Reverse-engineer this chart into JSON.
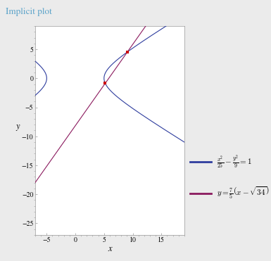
{
  "title": "Implicit plot",
  "title_color": "#5ba3c9",
  "background_color": "#ebebeb",
  "plot_background": "#ffffff",
  "xlim": [
    -7,
    19
  ],
  "ylim": [
    -27,
    9
  ],
  "xlabel": "x",
  "ylabel": "y",
  "hyperbola_a2": 25,
  "hyperbola_b2": 9,
  "hyperbola_color": "#2e3d9e",
  "line_slope_num": 7,
  "line_slope_den": 5,
  "line_color": "#8b1a5e",
  "intersection_color": "#cc0000",
  "xticks": [
    -5,
    0,
    5,
    10,
    15
  ],
  "yticks": [
    -25,
    -20,
    -15,
    -10,
    -5,
    0,
    5
  ],
  "tick_color": "#999999",
  "figsize": [
    3.85,
    3.71
  ],
  "dpi": 100
}
